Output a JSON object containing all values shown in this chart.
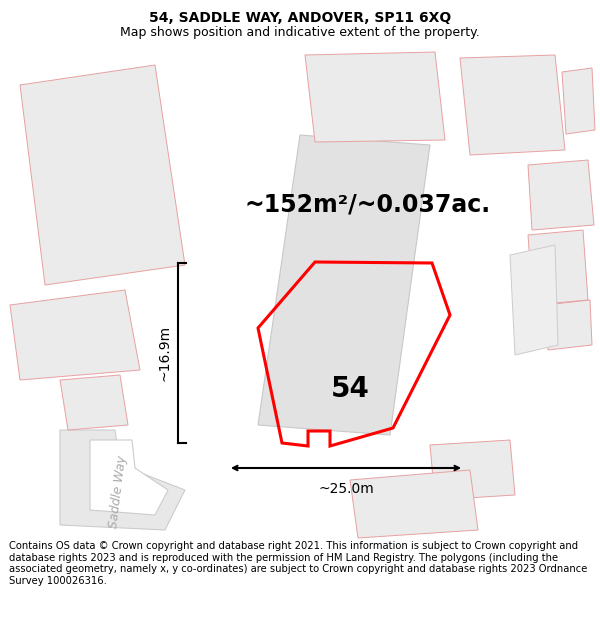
{
  "title_line1": "54, SADDLE WAY, ANDOVER, SP11 6XQ",
  "title_line2": "Map shows position and indicative extent of the property.",
  "footer_text": "Contains OS data © Crown copyright and database right 2021. This information is subject to Crown copyright and database rights 2023 and is reproduced with the permission of HM Land Registry. The polygons (including the associated geometry, namely x, y co-ordinates) are subject to Crown copyright and database rights 2023 Ordnance Survey 100026316.",
  "area_text": "~152m²/~0.037ac.",
  "number_text": "54",
  "dim_width": "~25.0m",
  "dim_height": "~16.9m",
  "road_text": "Saddle Way",
  "title_fontsize": 10,
  "subtitle_fontsize": 9,
  "area_fontsize": 17,
  "number_fontsize": 20,
  "dim_fontsize": 10,
  "footer_fontsize": 7.2
}
